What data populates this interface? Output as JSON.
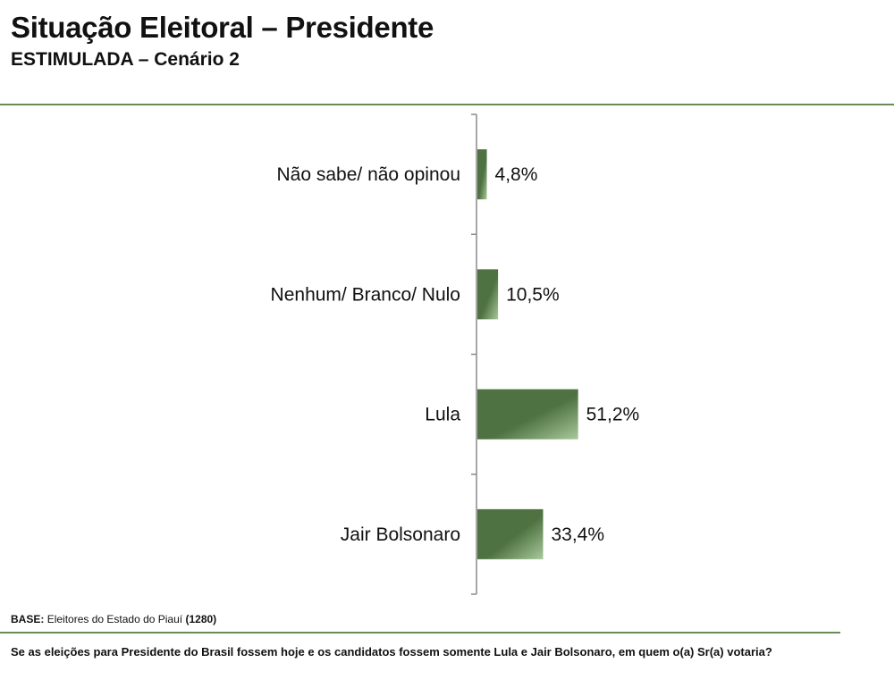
{
  "header": {
    "title": "Situação Eleitoral – Presidente",
    "subtitle": "ESTIMULADA – Cenário 2"
  },
  "chart_data": {
    "type": "bar",
    "orientation": "horizontal",
    "categories": [
      "Não sabe/ não opinou",
      "Nenhum/ Branco/ Nulo",
      "Lula",
      "Jair Bolsonaro"
    ],
    "values": [
      4.8,
      10.5,
      51.2,
      33.4
    ],
    "value_labels": [
      "4,8%",
      "10,5%",
      "51,2%",
      "33,4%"
    ],
    "unit": "%",
    "xlim": [
      0,
      100
    ],
    "grid": false,
    "legend": "none",
    "bar_color": "#4e7242",
    "bar_highlight": "#a9c99a"
  },
  "footer": {
    "base_label": "BASE:",
    "base_text": "Eleitores do Estado do Piauí",
    "base_count": "(1280)",
    "question": "Se as eleições para Presidente do Brasil fossem hoje e os candidatos fossem somente Lula e Jair Bolsonaro, em quem o(a) Sr(a) votaria?"
  },
  "colors": {
    "accent_rule": "#6b8a5a"
  }
}
